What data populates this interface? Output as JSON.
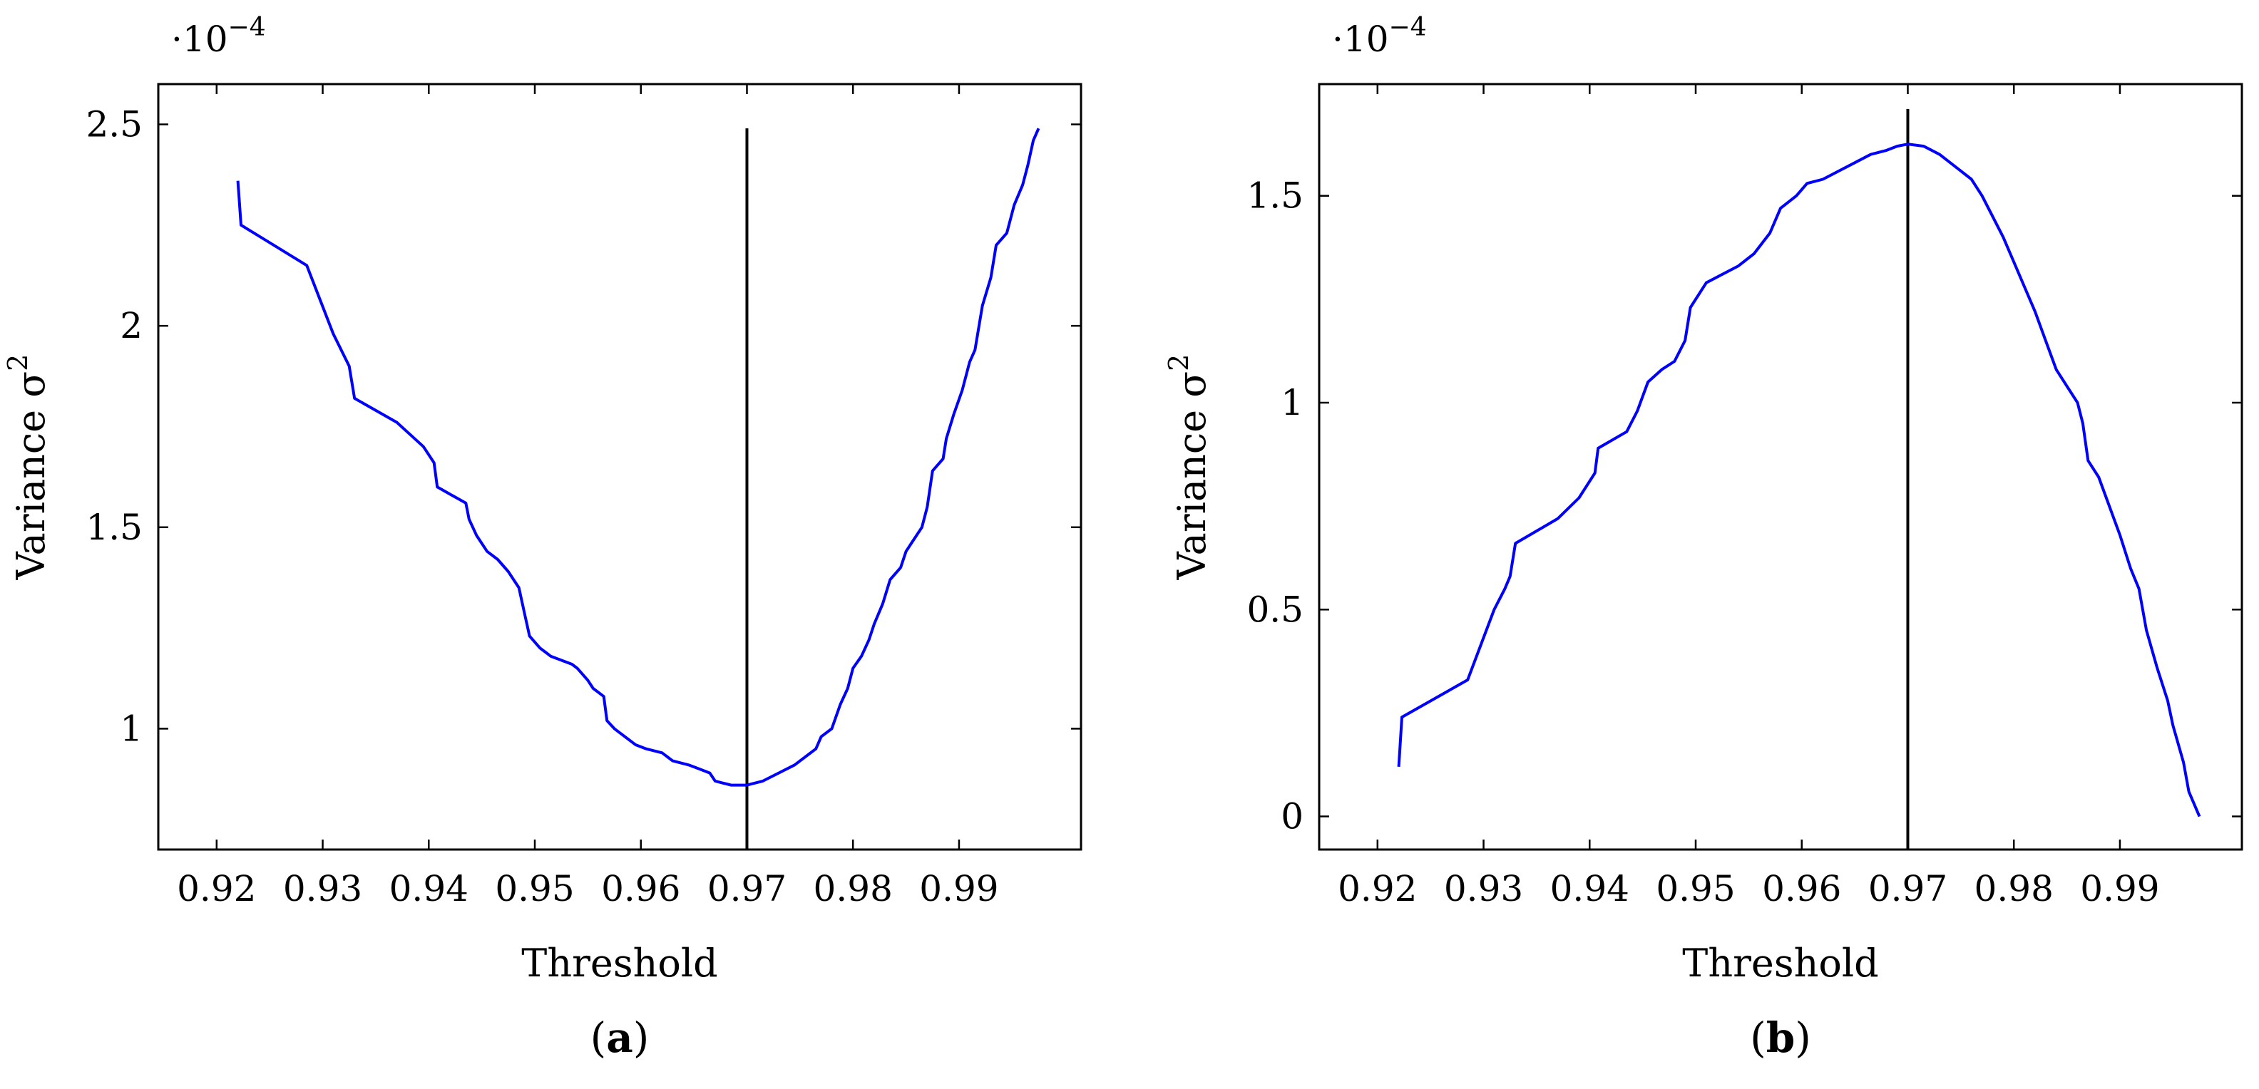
{
  "chart_data": [
    {
      "type": "line",
      "panel_label": "(a)",
      "panel_label_parts": {
        "open": "(",
        "letter": "a",
        "close": ")"
      },
      "xlabel": "Threshold",
      "ylabel": "Variance σ",
      "ylabel_parts": {
        "text": "Variance σ",
        "sup": "2"
      },
      "y_scale": {
        "base": "·10",
        "exponent": "−4"
      },
      "xlim": [
        0.9145,
        1.0015
      ],
      "ylim": [
        0.7,
        2.6
      ],
      "xticks": [
        0.92,
        0.93,
        0.94,
        0.95,
        0.96,
        0.97,
        0.98,
        0.99
      ],
      "xtick_labels": [
        "0.92",
        "0.93",
        "0.94",
        "0.95",
        "0.96",
        "0.97",
        "0.98",
        "0.99"
      ],
      "yticks": [
        1,
        1.5,
        2,
        2.5
      ],
      "ytick_labels": [
        "1",
        "1.5",
        "2",
        "2.5"
      ],
      "vline": {
        "x": 0.97,
        "y_top": 2.49
      },
      "series": [
        {
          "color": "#0000ff",
          "x": [
            0.922,
            0.9223,
            0.9285,
            0.931,
            0.9325,
            0.933,
            0.937,
            0.9395,
            0.9405,
            0.9408,
            0.9435,
            0.9438,
            0.9445,
            0.9455,
            0.9465,
            0.9475,
            0.9485,
            0.949,
            0.9495,
            0.9505,
            0.951,
            0.9515,
            0.9535,
            0.954,
            0.955,
            0.9555,
            0.9565,
            0.9568,
            0.9575,
            0.958,
            0.9595,
            0.9605,
            0.962,
            0.963,
            0.9645,
            0.9655,
            0.9665,
            0.967,
            0.9685,
            0.97,
            0.9715,
            0.973,
            0.9745,
            0.9755,
            0.9765,
            0.977,
            0.978,
            0.9788,
            0.9795,
            0.98,
            0.9808,
            0.9815,
            0.982,
            0.9828,
            0.9835,
            0.9845,
            0.985,
            0.9855,
            0.9865,
            0.987,
            0.9875,
            0.9885,
            0.9888,
            0.9895,
            0.9903,
            0.991,
            0.9915,
            0.9922,
            0.993,
            0.9935,
            0.9945,
            0.9952,
            0.996,
            0.9965,
            0.997,
            0.9975
          ],
          "y": [
            2.36,
            2.25,
            2.15,
            1.98,
            1.9,
            1.82,
            1.76,
            1.7,
            1.66,
            1.6,
            1.56,
            1.52,
            1.48,
            1.44,
            1.42,
            1.39,
            1.35,
            1.29,
            1.23,
            1.2,
            1.19,
            1.18,
            1.16,
            1.15,
            1.12,
            1.1,
            1.08,
            1.02,
            1.0,
            0.99,
            0.96,
            0.95,
            0.94,
            0.92,
            0.91,
            0.9,
            0.89,
            0.87,
            0.86,
            0.86,
            0.87,
            0.89,
            0.91,
            0.93,
            0.95,
            0.98,
            1.0,
            1.06,
            1.1,
            1.15,
            1.18,
            1.22,
            1.26,
            1.31,
            1.37,
            1.4,
            1.44,
            1.46,
            1.5,
            1.55,
            1.64,
            1.67,
            1.72,
            1.78,
            1.84,
            1.91,
            1.94,
            2.05,
            2.12,
            2.2,
            2.23,
            2.3,
            2.35,
            2.4,
            2.46,
            2.49
          ]
        }
      ]
    },
    {
      "type": "line",
      "panel_label": "(b)",
      "panel_label_parts": {
        "open": "(",
        "letter": "b",
        "close": ")"
      },
      "xlabel": "Threshold",
      "ylabel": "Variance σ",
      "ylabel_parts": {
        "text": "Variance σ",
        "sup": "2"
      },
      "y_scale": {
        "base": "·10",
        "exponent": "−4"
      },
      "xlim": [
        0.9145,
        1.0015
      ],
      "ylim": [
        -0.08,
        1.77
      ],
      "xticks": [
        0.92,
        0.93,
        0.94,
        0.95,
        0.96,
        0.97,
        0.98,
        0.99
      ],
      "xtick_labels": [
        "0.92",
        "0.93",
        "0.94",
        "0.95",
        "0.96",
        "0.97",
        "0.98",
        "0.99"
      ],
      "yticks": [
        0,
        0.5,
        1,
        1.5
      ],
      "ytick_labels": [
        "0",
        "0.5",
        "1",
        "1.5"
      ],
      "vline": {
        "x": 0.97,
        "y_top": 1.71
      },
      "series": [
        {
          "color": "#0000ff",
          "x": [
            0.922,
            0.9223,
            0.9285,
            0.931,
            0.932,
            0.9325,
            0.933,
            0.937,
            0.939,
            0.9405,
            0.9408,
            0.9435,
            0.9445,
            0.9455,
            0.9468,
            0.948,
            0.949,
            0.9495,
            0.951,
            0.9525,
            0.954,
            0.9555,
            0.957,
            0.958,
            0.9595,
            0.9605,
            0.962,
            0.9635,
            0.965,
            0.9665,
            0.968,
            0.969,
            0.97,
            0.9715,
            0.973,
            0.9745,
            0.976,
            0.977,
            0.978,
            0.979,
            0.98,
            0.981,
            0.982,
            0.983,
            0.984,
            0.985,
            0.986,
            0.9865,
            0.987,
            0.988,
            0.989,
            0.99,
            0.991,
            0.9918,
            0.9925,
            0.9935,
            0.9945,
            0.995,
            0.996,
            0.9965,
            0.9975
          ],
          "y": [
            0.12,
            0.24,
            0.33,
            0.5,
            0.55,
            0.58,
            0.66,
            0.72,
            0.77,
            0.83,
            0.89,
            0.93,
            0.98,
            1.05,
            1.08,
            1.1,
            1.15,
            1.23,
            1.29,
            1.31,
            1.33,
            1.36,
            1.41,
            1.47,
            1.5,
            1.53,
            1.54,
            1.56,
            1.58,
            1.6,
            1.61,
            1.62,
            1.625,
            1.62,
            1.6,
            1.57,
            1.54,
            1.5,
            1.45,
            1.4,
            1.34,
            1.28,
            1.22,
            1.15,
            1.08,
            1.04,
            1.0,
            0.95,
            0.86,
            0.82,
            0.75,
            0.68,
            0.6,
            0.55,
            0.45,
            0.36,
            0.28,
            0.22,
            0.13,
            0.06,
            0.0
          ]
        }
      ]
    }
  ]
}
